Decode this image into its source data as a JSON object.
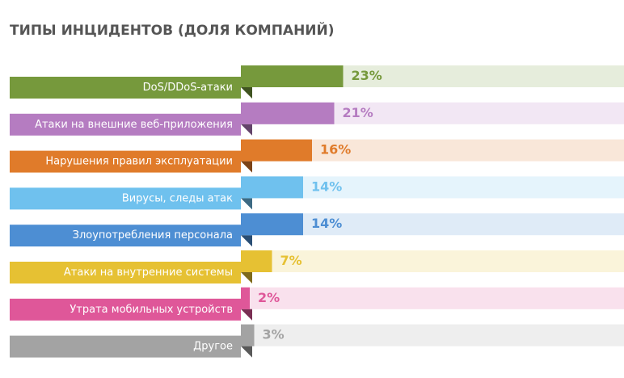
{
  "chart_data": {
    "type": "bar",
    "title": "ТИПЫ ИНЦИДЕНТОВ (ДОЛЯ КОМПАНИЙ)",
    "categories": [
      "DoS/DDoS-атаки",
      "Атаки на внешние веб-приложения",
      "Нарушения правил эксплуатации",
      "Вирусы, следы атак",
      "Злоупотребления персонала",
      "Атаки на внутренние системы",
      "Утрата мобильных устройств",
      "Другое"
    ],
    "values": [
      23,
      21,
      16,
      14,
      14,
      7,
      2,
      3
    ],
    "value_labels": [
      "23%",
      "21%",
      "16%",
      "14%",
      "14%",
      "7%",
      "2%",
      "3%"
    ],
    "colors": [
      "#76993c",
      "#b57cc1",
      "#e07b2a",
      "#6fc1ee",
      "#4d8ed3",
      "#e6c133",
      "#df5799",
      "#a3a3a3"
    ]
  }
}
